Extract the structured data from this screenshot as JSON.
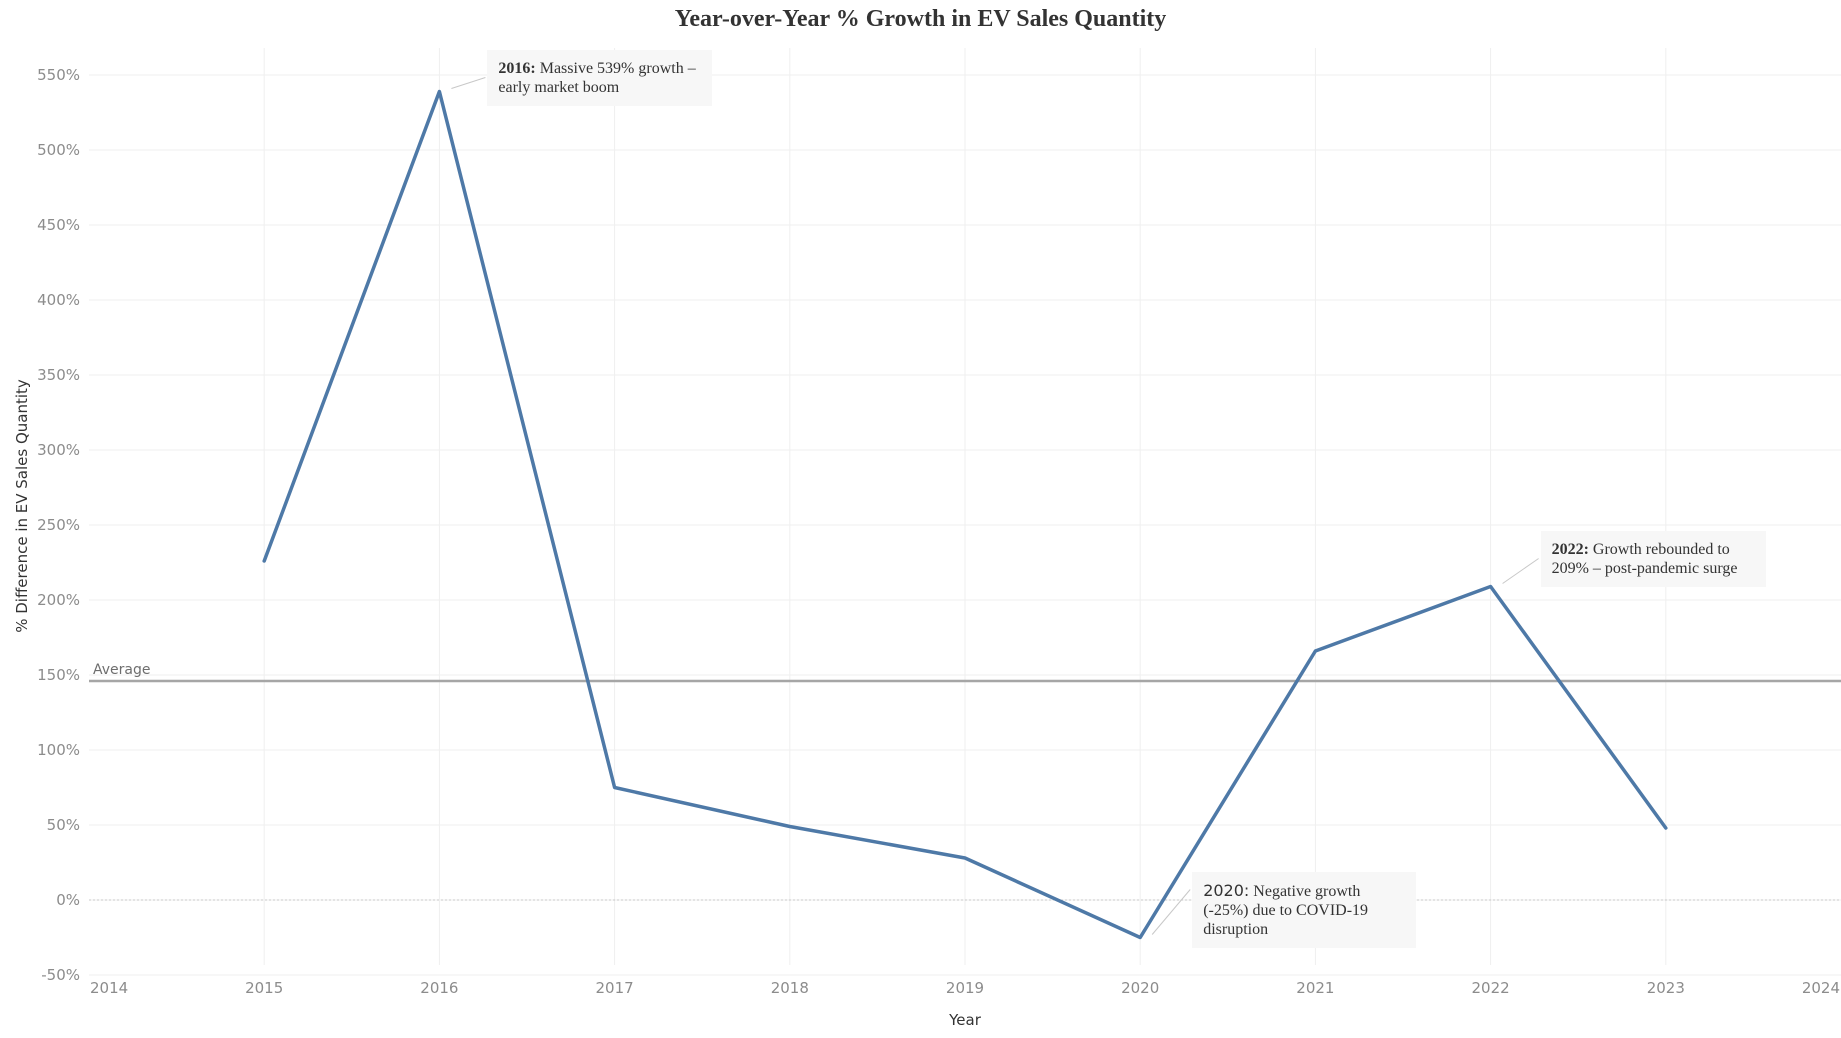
{
  "chart_data": {
    "type": "line",
    "title": "Year-over-Year % Growth in EV Sales Quantity",
    "xlabel": "Year",
    "ylabel": "% Difference in EV Sales Quantity",
    "x_ticks": [
      "2014",
      "2015",
      "2016",
      "2017",
      "2018",
      "2019",
      "2020",
      "2021",
      "2022",
      "2023",
      "2024"
    ],
    "xlim": [
      2014,
      2024
    ],
    "y_ticks": [
      "550%",
      "500%",
      "450%",
      "400%",
      "350%",
      "300%",
      "250%",
      "200%",
      "150%",
      "100%",
      "50%",
      "0%",
      "-50%"
    ],
    "ylim": [
      -55,
      570
    ],
    "grid": true,
    "series": [
      {
        "x": [
          2015,
          2016,
          2017,
          2018,
          2019,
          2020,
          2021,
          2022,
          2023
        ],
        "values": [
          226,
          539,
          75,
          49,
          28,
          -25,
          166,
          209,
          48
        ],
        "color": "#4e79a7"
      }
    ],
    "reference_line": {
      "label": "Average",
      "value": 146,
      "color": "#a6a6a6"
    },
    "annotations": [
      {
        "x": 2016,
        "y": 539,
        "lead": "2016:",
        "text": "Massive 539% growth – early market boom"
      },
      {
        "x": 2020,
        "y": -25,
        "lead": "2020:",
        "text": "Negative growth (-25%) due to COVID-19 disruption"
      },
      {
        "x": 2022,
        "y": 209,
        "lead": "2022:",
        "text": "Growth rebounded to 209% – post-pandemic surge"
      }
    ]
  }
}
